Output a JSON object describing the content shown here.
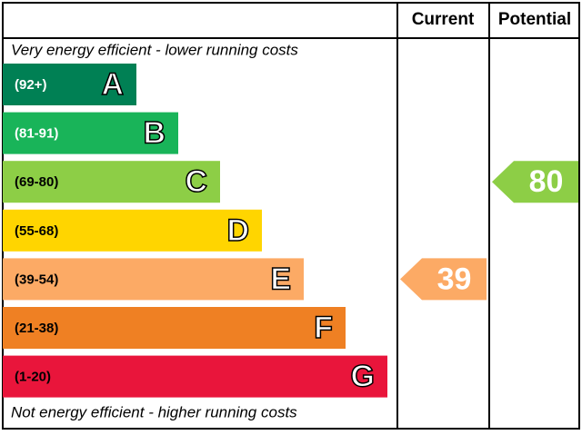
{
  "chart_data": {
    "type": "epc",
    "columns": [
      "Current",
      "Potential"
    ],
    "top_note": "Very energy efficient - lower running costs",
    "bottom_note": "Not energy efficient - higher running costs",
    "bands": [
      {
        "range": "(92+)",
        "letter": "A",
        "color": "#008054",
        "text_color": "#ffffff"
      },
      {
        "range": "(81-91)",
        "letter": "B",
        "color": "#19b459",
        "text_color": "#ffffff"
      },
      {
        "range": "(69-80)",
        "letter": "C",
        "color": "#8dce46",
        "text_color": "#000000"
      },
      {
        "range": "(55-68)",
        "letter": "D",
        "color": "#ffd500",
        "text_color": "#000000"
      },
      {
        "range": "(39-54)",
        "letter": "E",
        "color": "#fcaa65",
        "text_color": "#000000"
      },
      {
        "range": "(21-38)",
        "letter": "F",
        "color": "#ef8023",
        "text_color": "#000000"
      },
      {
        "range": "(1-20)",
        "letter": "G",
        "color": "#e9153b",
        "text_color": "#000000"
      }
    ],
    "current": 39,
    "potential": 80
  }
}
